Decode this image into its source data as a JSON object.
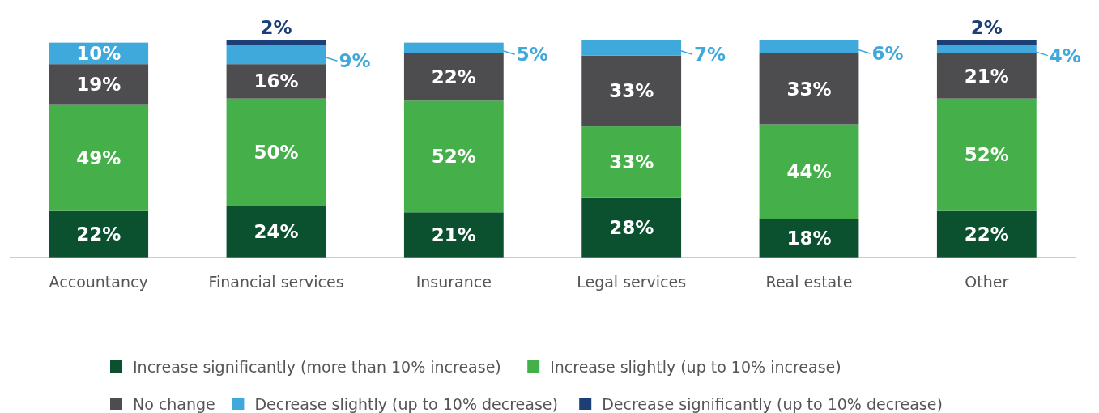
{
  "chart_data": {
    "type": "bar",
    "stacked": true,
    "legend": "bottom",
    "categories": [
      "Accountancy",
      "Financial services",
      "Insurance",
      "Legal services",
      "Real estate",
      "Other"
    ],
    "series": [
      {
        "name": "Increase significantly (more than 10% increase)",
        "color": "#0b5130",
        "values": [
          22,
          24,
          21,
          28,
          18,
          22
        ],
        "value_labels": [
          "22%",
          "24%",
          "21%",
          "28%",
          "18%",
          "22%"
        ]
      },
      {
        "name": "Increase slightly (up to 10% increase)",
        "color": "#45b04a",
        "values": [
          49,
          50,
          52,
          33,
          44,
          52
        ],
        "value_labels": [
          "49%",
          "50%",
          "52%",
          "33%",
          "44%",
          "52%"
        ]
      },
      {
        "name": "No change",
        "color": "#4d4d4f",
        "values": [
          19,
          16,
          22,
          33,
          33,
          21
        ],
        "value_labels": [
          "19%",
          "16%",
          "22%",
          "33%",
          "33%",
          "21%"
        ]
      },
      {
        "name": "Decrease slightly (up to 10% decrease)",
        "color": "#3fa9dc",
        "values": [
          10,
          9,
          5,
          7,
          6,
          4
        ],
        "value_labels": [
          "10%",
          "9%",
          "5%",
          "7%",
          "6%",
          "4%"
        ]
      },
      {
        "name": "Decrease significantly (up to 10% decrease)",
        "color": "#1c3f78",
        "values": [
          null,
          2,
          null,
          null,
          null,
          2
        ],
        "value_labels": [
          null,
          "2%",
          null,
          null,
          null,
          "2%"
        ]
      }
    ]
  }
}
